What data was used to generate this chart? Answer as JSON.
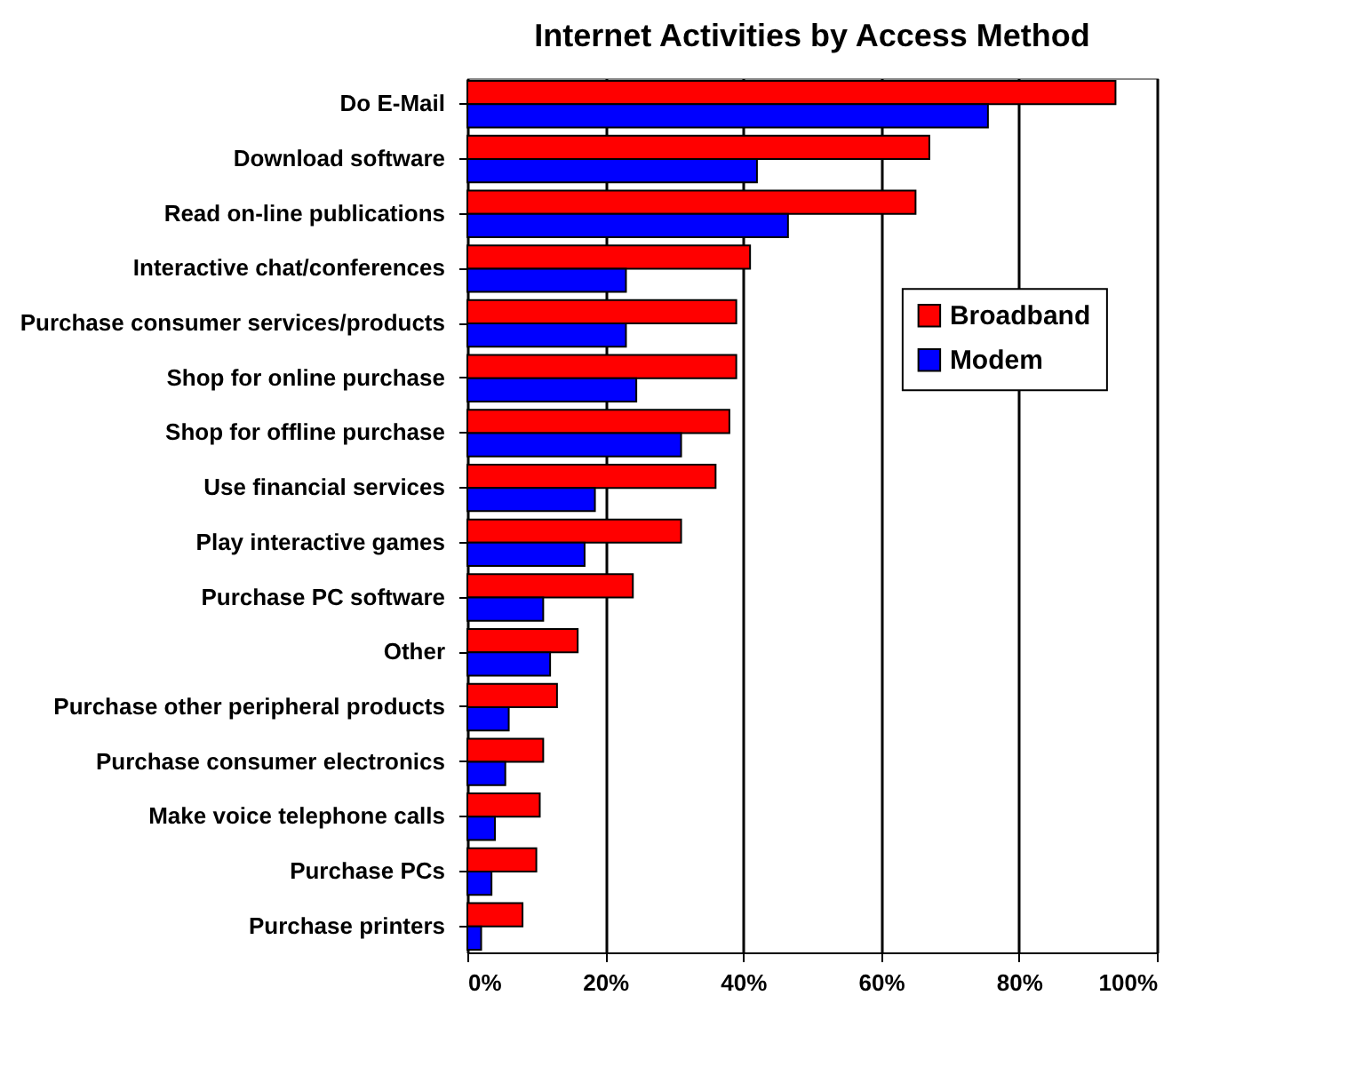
{
  "chart_data": {
    "type": "bar",
    "orientation": "horizontal",
    "title": "Internet Activities by Access Method",
    "categories": [
      "Do E-Mail",
      "Download software",
      "Read on-line publications",
      "Interactive chat/conferences",
      "Purchase consumer services/products",
      "Shop for online purchase",
      "Shop for offline purchase",
      "Use financial services",
      "Play interactive games",
      "Purchase PC software",
      "Other",
      "Purchase other peripheral products",
      "Purchase consumer electronics",
      "Make voice telephone calls",
      "Purchase PCs",
      "Purchase printers"
    ],
    "series": [
      {
        "name": "Broadband",
        "color": "#ff0000",
        "values": [
          94,
          67,
          65,
          41,
          39,
          39,
          38,
          36,
          31,
          24,
          16,
          13,
          11,
          10.5,
          10,
          8
        ]
      },
      {
        "name": "Modem",
        "color": "#0000ff",
        "values": [
          75.5,
          42,
          46.5,
          23,
          23,
          24.5,
          31,
          18.5,
          17,
          11,
          12,
          6,
          5.5,
          4,
          3.5,
          2
        ]
      }
    ],
    "xlim": [
      0,
      100
    ],
    "xticks": [
      {
        "value": 0,
        "label": "0%"
      },
      {
        "value": 20,
        "label": "20%"
      },
      {
        "value": 40,
        "label": "40%"
      },
      {
        "value": 60,
        "label": "60%"
      },
      {
        "value": 80,
        "label": "80%"
      },
      {
        "value": 100,
        "label": "100%"
      }
    ],
    "grid": "x",
    "legend": "right"
  }
}
